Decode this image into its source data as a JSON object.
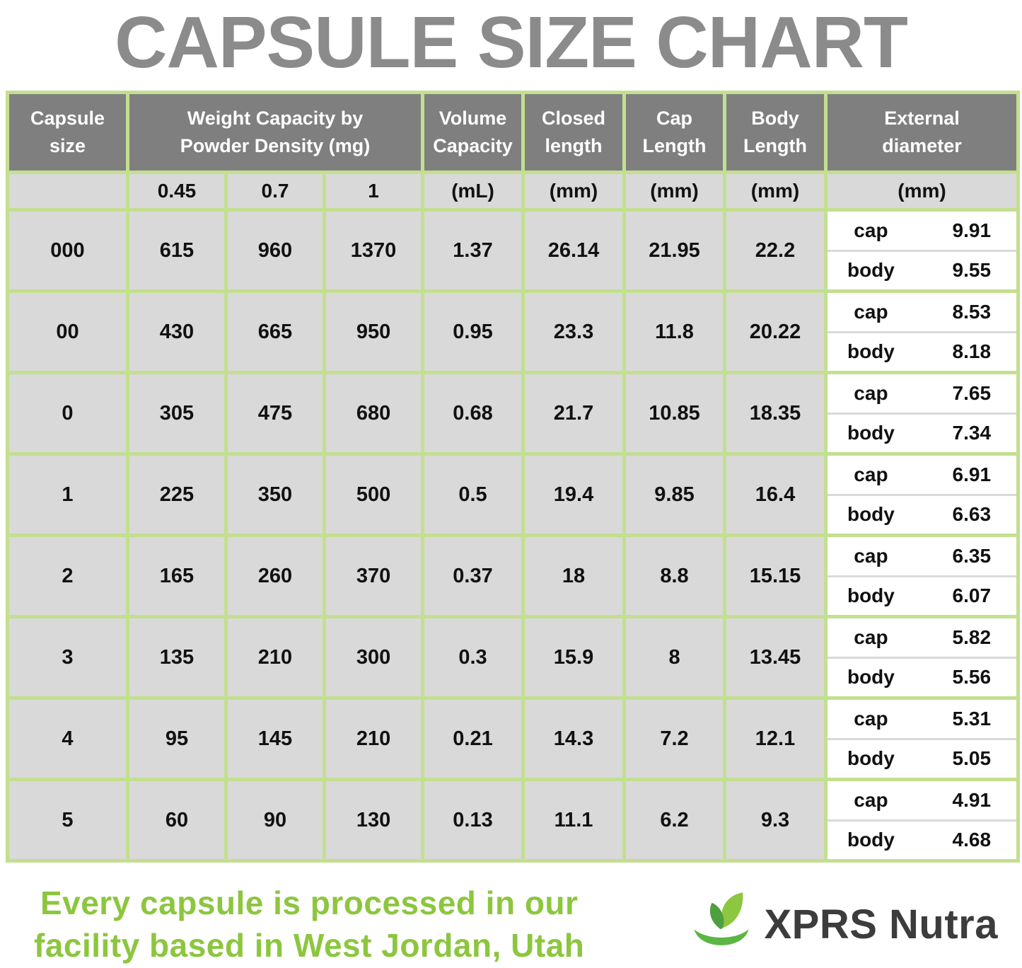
{
  "title": "CAPSULE SIZE CHART",
  "chart_data": {
    "type": "table",
    "title": "CAPSULE SIZE CHART",
    "column_groups": {
      "capsule_size": "Capsule size",
      "weight_capacity": "Weight Capacity by Powder Density (mg)",
      "volume_capacity": "Volume Capacity",
      "closed_length": "Closed length",
      "cap_length": "Cap Length",
      "body_length": "Body Length",
      "external_diameter": "External diameter"
    },
    "units_row": {
      "densities": [
        "0.45",
        "0.7",
        "1"
      ],
      "volume": "(mL)",
      "closed": "(mm)",
      "cap": "(mm)",
      "body": "(mm)",
      "diameter": "(mm)"
    },
    "rows": [
      {
        "size": "000",
        "weight_045": "615",
        "weight_07": "960",
        "weight_1": "1370",
        "volume": "1.37",
        "closed": "26.14",
        "cap_length": "21.95",
        "body_length": "22.2",
        "cap_label": "cap",
        "cap_diameter": "9.91",
        "body_label": "body",
        "body_diameter": "9.55"
      },
      {
        "size": "00",
        "weight_045": "430",
        "weight_07": "665",
        "weight_1": "950",
        "volume": "0.95",
        "closed": "23.3",
        "cap_length": "11.8",
        "body_length": "20.22",
        "cap_label": "cap",
        "cap_diameter": "8.53",
        "body_label": "body",
        "body_diameter": "8.18"
      },
      {
        "size": "0",
        "weight_045": "305",
        "weight_07": "475",
        "weight_1": "680",
        "volume": "0.68",
        "closed": "21.7",
        "cap_length": "10.85",
        "body_length": "18.35",
        "cap_label": "cap",
        "cap_diameter": "7.65",
        "body_label": "body",
        "body_diameter": "7.34"
      },
      {
        "size": "1",
        "weight_045": "225",
        "weight_07": "350",
        "weight_1": "500",
        "volume": "0.5",
        "closed": "19.4",
        "cap_length": "9.85",
        "body_length": "16.4",
        "cap_label": "cap",
        "cap_diameter": "6.91",
        "body_label": "body",
        "body_diameter": "6.63"
      },
      {
        "size": "2",
        "weight_045": "165",
        "weight_07": "260",
        "weight_1": "370",
        "volume": "0.37",
        "closed": "18",
        "cap_length": "8.8",
        "body_length": "15.15",
        "cap_label": "cap",
        "cap_diameter": "6.35",
        "body_label": "body",
        "body_diameter": "6.07"
      },
      {
        "size": "3",
        "weight_045": "135",
        "weight_07": "210",
        "weight_1": "300",
        "volume": "0.3",
        "closed": "15.9",
        "cap_length": "8",
        "body_length": "13.45",
        "cap_label": "cap",
        "cap_diameter": "5.82",
        "body_label": "body",
        "body_diameter": "5.56"
      },
      {
        "size": "4",
        "weight_045": "95",
        "weight_07": "145",
        "weight_1": "210",
        "volume": "0.21",
        "closed": "14.3",
        "cap_length": "7.2",
        "body_length": "12.1",
        "cap_label": "cap",
        "cap_diameter": "5.31",
        "body_label": "body",
        "body_diameter": "5.05"
      },
      {
        "size": "5",
        "weight_045": "60",
        "weight_07": "90",
        "weight_1": "130",
        "volume": "0.13",
        "closed": "11.1",
        "cap_length": "6.2",
        "body_length": "9.3",
        "cap_label": "cap",
        "cap_diameter": "4.91",
        "body_label": "body",
        "body_diameter": "4.68"
      }
    ]
  },
  "footer": {
    "tagline_line1": "Every capsule is processed in our",
    "tagline_line2": "facility based in West Jordan, Utah",
    "brand_name": "XPRS Nutra"
  },
  "colors": {
    "border_green": "#c3df8f",
    "header_gray": "#7f7f7f",
    "cell_gray": "#d9d9d9",
    "title_gray": "#8b8b8b",
    "tagline_green": "#8cc63e",
    "brand_dark": "#3c3c3c"
  }
}
